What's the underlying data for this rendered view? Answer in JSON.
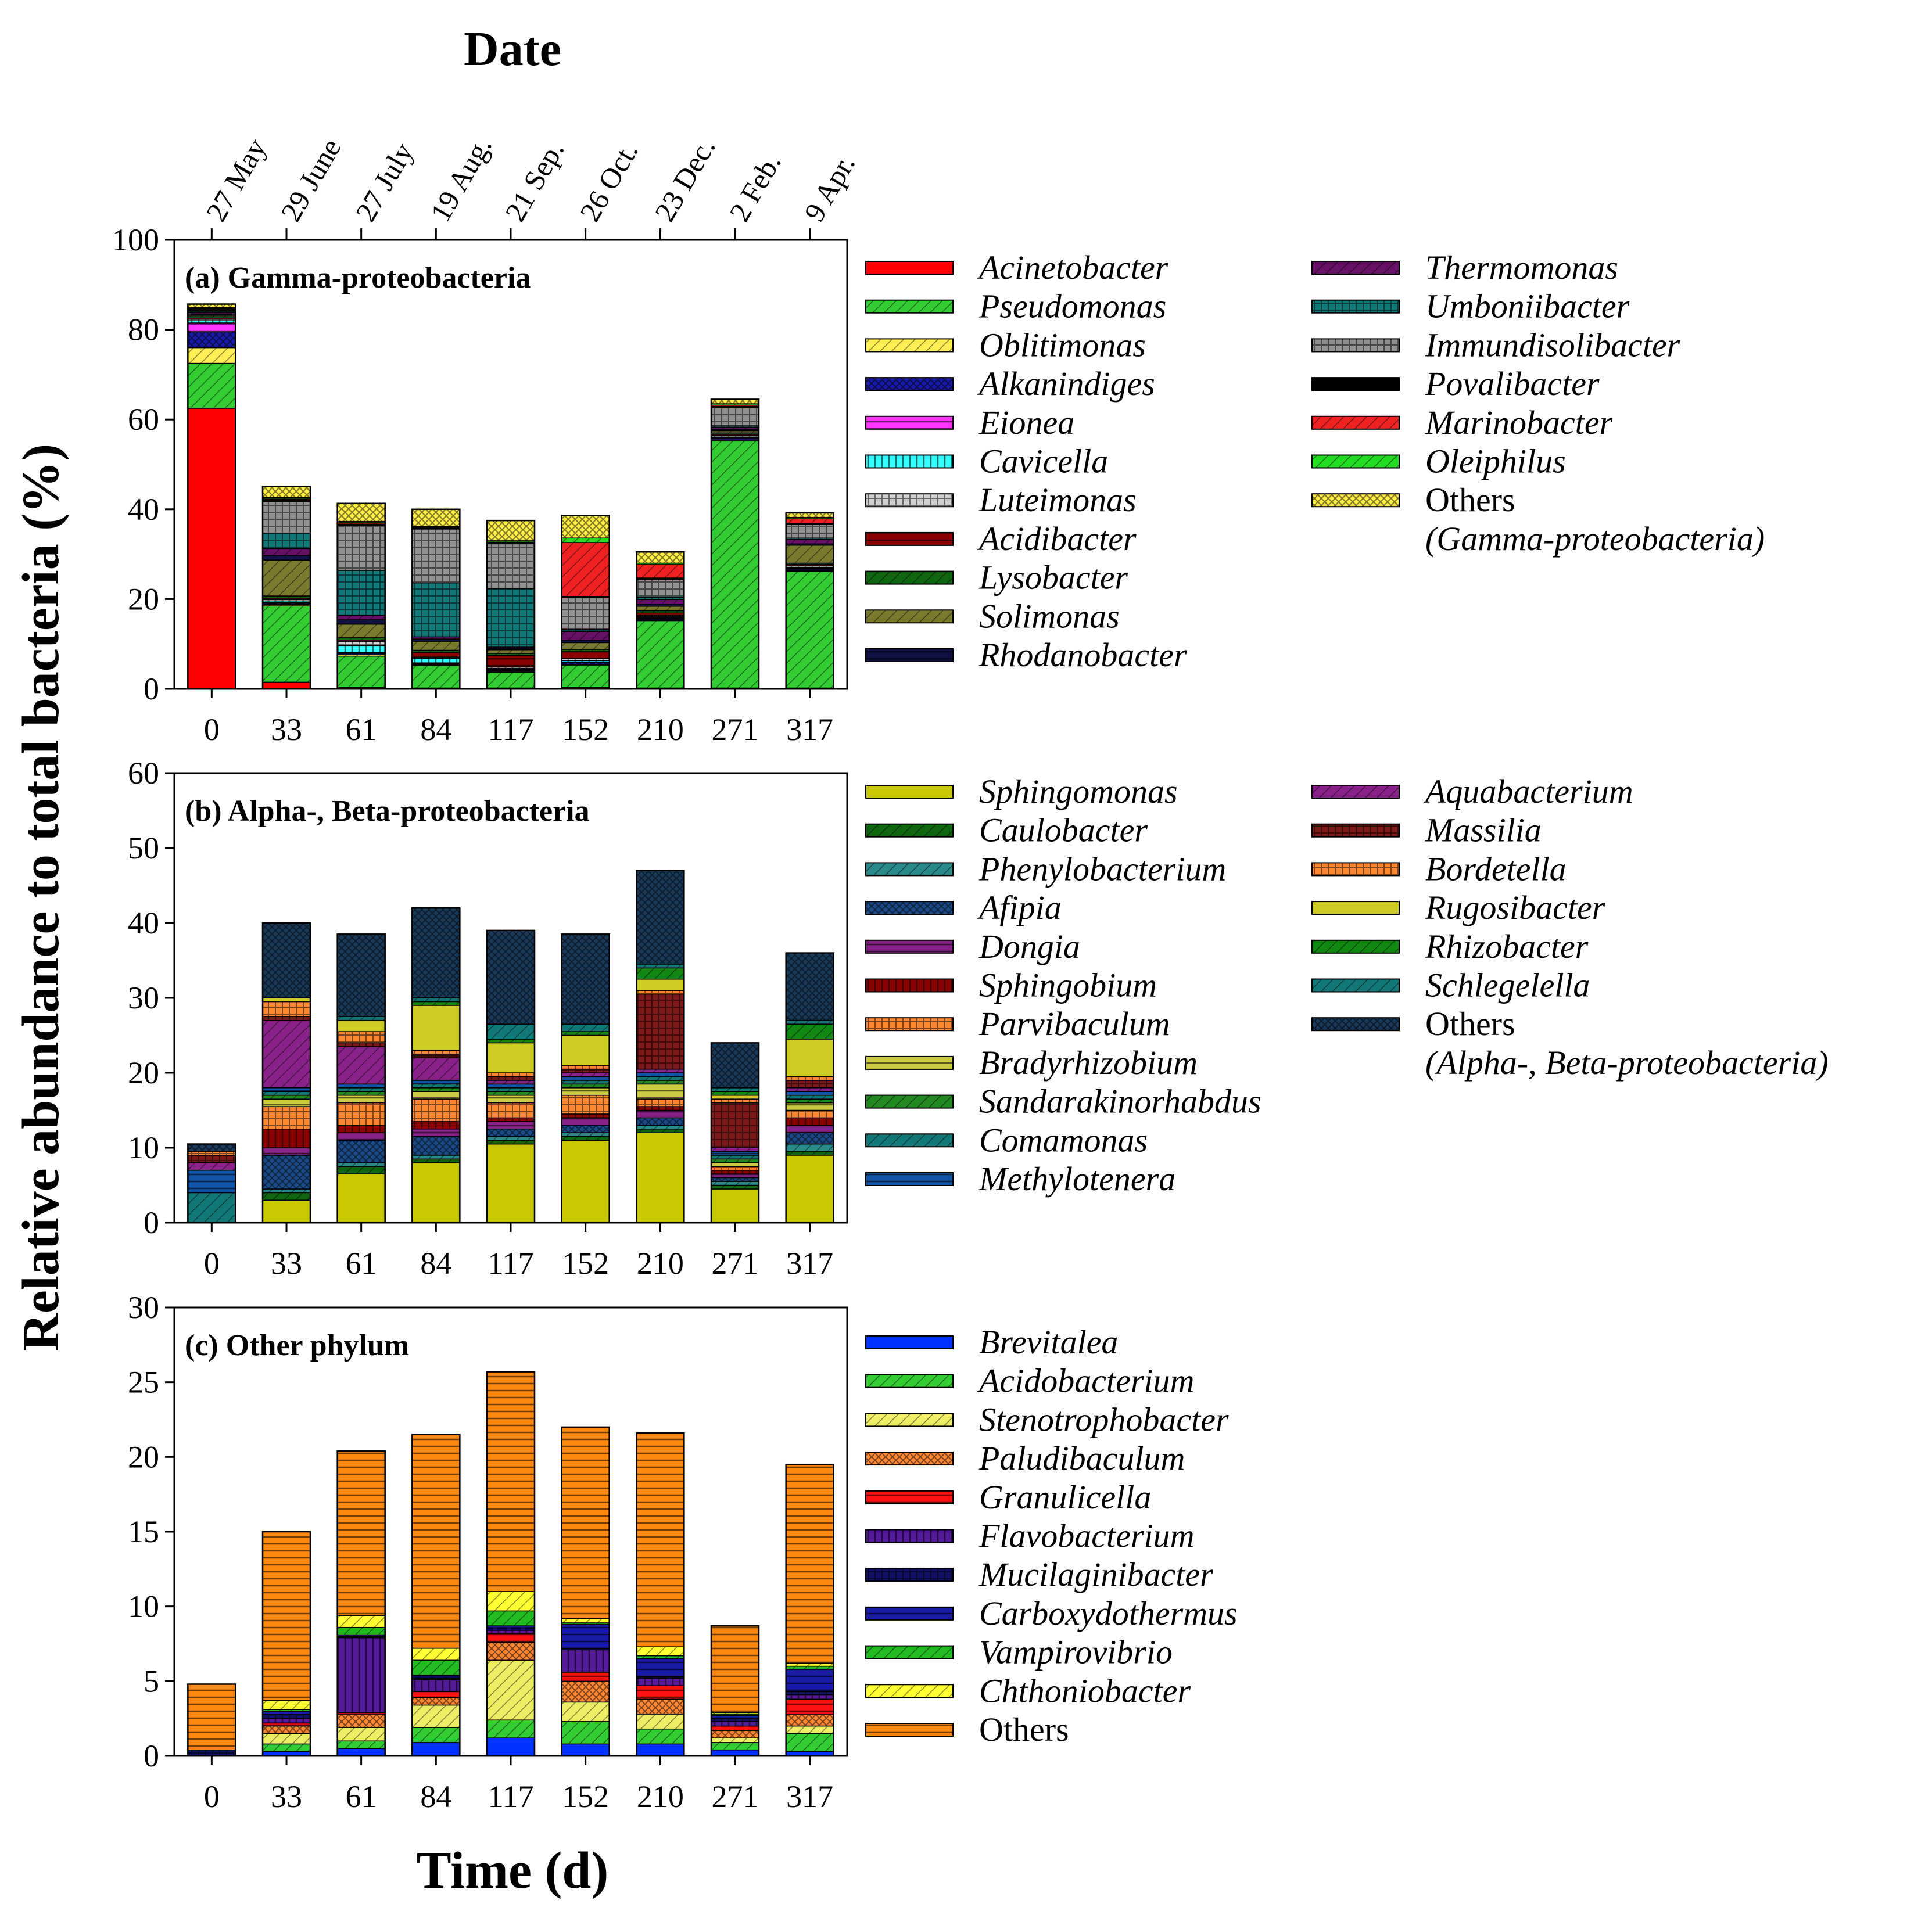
{
  "date_axis": {
    "title": "Date",
    "labels": [
      "27 May",
      "29 June",
      "27 July",
      "19 Aug.",
      "21 Sep.",
      "26 Oct.",
      "23 Dec.",
      "2 Feb.",
      "9 Apr."
    ]
  },
  "y_axis_title": "Relative abundance to total bacteria (%)",
  "x_axis_title": "Time (d)",
  "chart_data": [
    {
      "type": "bar",
      "stacked": true,
      "title": "(a) Gamma-proteobacteria",
      "categories": [
        "0",
        "33",
        "61",
        "84",
        "117",
        "152",
        "210",
        "271",
        "317"
      ],
      "ylim": [
        0,
        100
      ],
      "yticks": [
        0,
        20,
        40,
        60,
        80,
        100
      ],
      "xlabel": "Time (d)",
      "ylabel": "Relative abundance to total bacteria (%)",
      "series": [
        {
          "name": "Acinetobacter",
          "color": "#ff0000",
          "values": [
            62.5,
            1.5,
            0.3,
            0.2,
            0.2,
            0.3,
            0.2,
            0.2,
            0.2
          ]
        },
        {
          "name": "Pseudomonas",
          "color": "#33cc33",
          "values": [
            10,
            17,
            7,
            5,
            3.5,
            5,
            15,
            55,
            26
          ]
        },
        {
          "name": "Oblitimonas",
          "color": "#ffee55",
          "values": [
            3.5,
            0.3,
            0.3,
            0.2,
            0.2,
            0.2,
            0.2,
            0.2,
            0.2
          ]
        },
        {
          "name": "Alkanindiges",
          "color": "#1a1aa8",
          "values": [
            3.5,
            0.3,
            0.3,
            0.2,
            0.2,
            0.3,
            0.3,
            0.3,
            0.3
          ]
        },
        {
          "name": "Eionea",
          "color": "#ff33ff",
          "values": [
            2,
            0.2,
            0.2,
            0.2,
            0.2,
            0.2,
            0.2,
            0.2,
            0.2
          ]
        },
        {
          "name": "Cavicella",
          "color": "#33ffff",
          "values": [
            0.5,
            0.3,
            1.5,
            1,
            0.3,
            0.3,
            0.2,
            0.2,
            0.2
          ]
        },
        {
          "name": "Luteimonas",
          "color": "#d0d0d0",
          "values": [
            0.3,
            0.3,
            1,
            0.3,
            0.3,
            0.5,
            0.3,
            0.3,
            0.3
          ]
        },
        {
          "name": "Acidibacter",
          "color": "#8b0000",
          "values": [
            0.3,
            0.3,
            0.3,
            1,
            2.5,
            1.5,
            0.5,
            0.3,
            0.3
          ]
        },
        {
          "name": "Lysobacter",
          "color": "#116611",
          "values": [
            0.3,
            0.5,
            0.5,
            0.5,
            0.5,
            0.5,
            0.5,
            0.3,
            0.3
          ]
        },
        {
          "name": "Solimonas",
          "color": "#7a7a2e",
          "values": [
            0.3,
            8,
            3,
            2,
            0.8,
            1.5,
            1,
            0.5,
            4
          ]
        },
        {
          "name": "Rhodanobacter",
          "color": "#111144",
          "values": [
            0.3,
            1,
            1,
            0.5,
            0.3,
            0.5,
            0.5,
            0.3,
            0.3
          ]
        },
        {
          "name": "Thermomonas",
          "color": "#661166",
          "values": [
            0.3,
            1.5,
            1,
            0.5,
            0.3,
            2,
            1,
            0.5,
            1
          ]
        },
        {
          "name": "Umboniibacter",
          "color": "#117777",
          "values": [
            0.3,
            3.5,
            10,
            12,
            13,
            0.5,
            0.5,
            0.3,
            0.3
          ]
        },
        {
          "name": "Immundisolibacter",
          "color": "#909090",
          "values": [
            0.2,
            7,
            10,
            12,
            10,
            7,
            4,
            4,
            3
          ]
        },
        {
          "name": "Povalibacter",
          "color": "#000000",
          "values": [
            0.2,
            0.3,
            0.3,
            0.2,
            0.2,
            0.3,
            0.3,
            0.3,
            0.3
          ]
        },
        {
          "name": "Marinobacter",
          "color": "#ee2222",
          "values": [
            0.2,
            0.3,
            0.3,
            0.2,
            0.2,
            12,
            3,
            0.3,
            1
          ]
        },
        {
          "name": "Oleiphilus",
          "color": "#22dd22",
          "values": [
            0.2,
            0.3,
            0.3,
            0.2,
            0.3,
            1,
            0.3,
            0.3,
            0.3
          ]
        },
        {
          "name": "Others",
          "color": "#ffee44",
          "values": [
            0.8,
            2.5,
            4,
            3.8,
            4.5,
            5,
            2.5,
            1,
            1
          ]
        }
      ],
      "legend": {
        "columns": [
          [
            "Acinetobacter",
            "Pseudomonas",
            "Oblitimonas",
            "Alkanindiges",
            "Eionea",
            "Cavicella",
            "Luteimonas",
            "Acidibacter",
            "Lysobacter",
            "Solimonas",
            "Rhodanobacter"
          ],
          [
            "Thermomonas",
            "Umboniibacter",
            "Immundisolibacter",
            "Povalibacter",
            "Marinobacter",
            "Oleiphilus",
            "Others"
          ]
        ],
        "others_group": "(Gamma-proteobacteria)"
      }
    },
    {
      "type": "bar",
      "stacked": true,
      "title": "(b) Alpha-, Beta-proteobacteria",
      "categories": [
        "0",
        "33",
        "61",
        "84",
        "117",
        "152",
        "210",
        "271",
        "317"
      ],
      "ylim": [
        0,
        60
      ],
      "yticks": [
        0,
        10,
        20,
        30,
        40,
        50,
        60
      ],
      "xlabel": "Time (d)",
      "ylabel": "Relative abundance to total bacteria (%)",
      "series": [
        {
          "name": "Sphingomonas",
          "color": "#c8c800",
          "values": [
            0,
            3,
            6.5,
            8,
            10.5,
            11,
            12,
            4.5,
            9
          ]
        },
        {
          "name": "Caulobacter",
          "color": "#116611",
          "values": [
            0,
            1,
            1,
            0.5,
            0.5,
            0.5,
            0.5,
            0.5,
            0.5
          ]
        },
        {
          "name": "Phenylobacterium",
          "color": "#2a8a8a",
          "values": [
            0,
            0.5,
            0.5,
            0.5,
            0.5,
            0.5,
            0.5,
            0.5,
            1
          ]
        },
        {
          "name": "Afipia",
          "color": "#1a4a88",
          "values": [
            0,
            4.5,
            3,
            2.5,
            1,
            1,
            1,
            0.5,
            1.5
          ]
        },
        {
          "name": "Dongia",
          "color": "#882288",
          "values": [
            0,
            1,
            1,
            1,
            1,
            1,
            1,
            0.5,
            1
          ]
        },
        {
          "name": "Sphingobium",
          "color": "#8b0000",
          "values": [
            0,
            2.5,
            1,
            1,
            0.5,
            0.5,
            0.5,
            0.5,
            1
          ]
        },
        {
          "name": "Parvibaculum",
          "color": "#ff8833",
          "values": [
            0,
            3,
            3,
            3,
            2,
            2.5,
            1,
            0.5,
            1
          ]
        },
        {
          "name": "Bradyrhizobium",
          "color": "#cccc44",
          "values": [
            0,
            1,
            1,
            1,
            1,
            1,
            2,
            0.5,
            1
          ]
        },
        {
          "name": "Sandarakinorhabdus",
          "color": "#228822",
          "values": [
            0,
            0.5,
            0.5,
            0.5,
            0.5,
            0.5,
            0.5,
            0.5,
            0.5
          ]
        },
        {
          "name": "Comamonas",
          "color": "#117777",
          "values": [
            4,
            0.5,
            0.5,
            0.5,
            0.5,
            0.5,
            0.5,
            0.5,
            0.5
          ]
        },
        {
          "name": "Methylotenera",
          "color": "#1155aa",
          "values": [
            3,
            0.5,
            0.5,
            0.5,
            0.5,
            0.5,
            0.5,
            0.5,
            0.5
          ]
        },
        {
          "name": "Aquabacterium",
          "color": "#882288",
          "values": [
            1,
            9,
            5,
            3,
            0.5,
            0.5,
            0.5,
            0.5,
            0.5
          ]
        },
        {
          "name": "Massilia",
          "color": "#7a1a1a",
          "values": [
            1,
            0.5,
            0.5,
            0.5,
            0.5,
            0.5,
            10,
            6,
            1
          ]
        },
        {
          "name": "Bordetella",
          "color": "#ff8833",
          "values": [
            0.5,
            2,
            1.5,
            0.5,
            0.5,
            0.5,
            0.5,
            0.5,
            0.5
          ]
        },
        {
          "name": "Rugosibacter",
          "color": "#cccc22",
          "values": [
            0,
            0.5,
            1.5,
            6,
            4,
            4,
            1.5,
            0.5,
            5
          ]
        },
        {
          "name": "Rhizobacter",
          "color": "#118811",
          "values": [
            0,
            0,
            0,
            0.5,
            0.5,
            0.5,
            1.5,
            0.5,
            2
          ]
        },
        {
          "name": "Schlegelella",
          "color": "#117777",
          "values": [
            0,
            0,
            0.5,
            0.5,
            2,
            1,
            0.5,
            0.5,
            0.5
          ]
        },
        {
          "name": "Others",
          "color": "#1a3a5a",
          "values": [
            1,
            10,
            11,
            12,
            12.5,
            12,
            12.5,
            6,
            9
          ]
        }
      ],
      "legend": {
        "columns": [
          [
            "Sphingomonas",
            "Caulobacter",
            "Phenylobacterium",
            "Afipia",
            "Dongia",
            "Sphingobium",
            "Parvibaculum",
            "Bradyrhizobium",
            "Sandarakinorhabdus",
            "Comamonas",
            "Methylotenera"
          ],
          [
            "Aquabacterium",
            "Massilia",
            "Bordetella",
            "Rugosibacter",
            "Rhizobacter",
            "Schlegelella",
            "Others"
          ]
        ],
        "others_group": "(Alpha-, Beta-proteobacteria)"
      }
    },
    {
      "type": "bar",
      "stacked": true,
      "title": "(c) Other phylum",
      "categories": [
        "0",
        "33",
        "61",
        "84",
        "117",
        "152",
        "210",
        "271",
        "317"
      ],
      "ylim": [
        0,
        30
      ],
      "yticks": [
        0,
        5,
        10,
        15,
        20,
        25,
        30
      ],
      "xlabel": "Time (d)",
      "ylabel": "Relative abundance to total bacteria (%)",
      "series": [
        {
          "name": "Brevitalea",
          "color": "#0033ff",
          "values": [
            0,
            0.3,
            0.5,
            0.9,
            1.2,
            0.8,
            0.8,
            0.4,
            0.3
          ]
        },
        {
          "name": "Acidobacterium",
          "color": "#33cc33",
          "values": [
            0,
            0.5,
            0.5,
            1,
            1.2,
            1.5,
            1,
            0.5,
            1.2
          ]
        },
        {
          "name": "Stenotrophobacter",
          "color": "#eeee66",
          "values": [
            0,
            0.7,
            0.9,
            1.5,
            4,
            1.3,
            1,
            0.3,
            0.5
          ]
        },
        {
          "name": "Paludibaculum",
          "color": "#ff8833",
          "values": [
            0,
            0.5,
            0.9,
            0.5,
            1.2,
            1.4,
            1,
            0.5,
            0.8
          ]
        },
        {
          "name": "Granulicella",
          "color": "#ff1111",
          "values": [
            0,
            0.2,
            0.1,
            0.4,
            0.6,
            0.6,
            0.9,
            0.3,
            1
          ]
        },
        {
          "name": "Flavobacterium",
          "color": "#551a99",
          "values": [
            0,
            0.3,
            5,
            0.8,
            0.2,
            1.5,
            0.5,
            0.3,
            0.3
          ]
        },
        {
          "name": "Mucilaginibacter",
          "color": "#111166",
          "values": [
            0.4,
            0.3,
            0.1,
            0.1,
            0.1,
            0.1,
            0.1,
            0.2,
            0.2
          ]
        },
        {
          "name": "Carboxydothermus",
          "color": "#1a1aa8",
          "values": [
            0,
            0.2,
            0.1,
            0.2,
            0.2,
            1.6,
            1.2,
            0.2,
            1.5
          ]
        },
        {
          "name": "Vampirovibrio",
          "color": "#22bb22",
          "values": [
            0,
            0.1,
            0.5,
            1,
            1,
            0.1,
            0.2,
            0.1,
            0.2
          ]
        },
        {
          "name": "Chthoniobacter",
          "color": "#ffff33",
          "values": [
            0,
            0.6,
            0.8,
            0.8,
            1.3,
            0.3,
            0.6,
            0.1,
            0.2
          ]
        },
        {
          "name": "Others",
          "color": "#ff8811",
          "values": [
            4.4,
            11.3,
            11,
            14.3,
            14.7,
            12.8,
            14.3,
            5.8,
            13.3
          ]
        }
      ],
      "legend": {
        "columns": [
          [
            "Brevitalea",
            "Acidobacterium",
            "Stenotrophobacter",
            "Paludibaculum",
            "Granulicella",
            "Flavobacterium",
            "Mucilaginibacter",
            "Carboxydothermus",
            "Vampirovibrio",
            "Chthoniobacter",
            "Others"
          ]
        ],
        "others_group": ""
      }
    }
  ]
}
